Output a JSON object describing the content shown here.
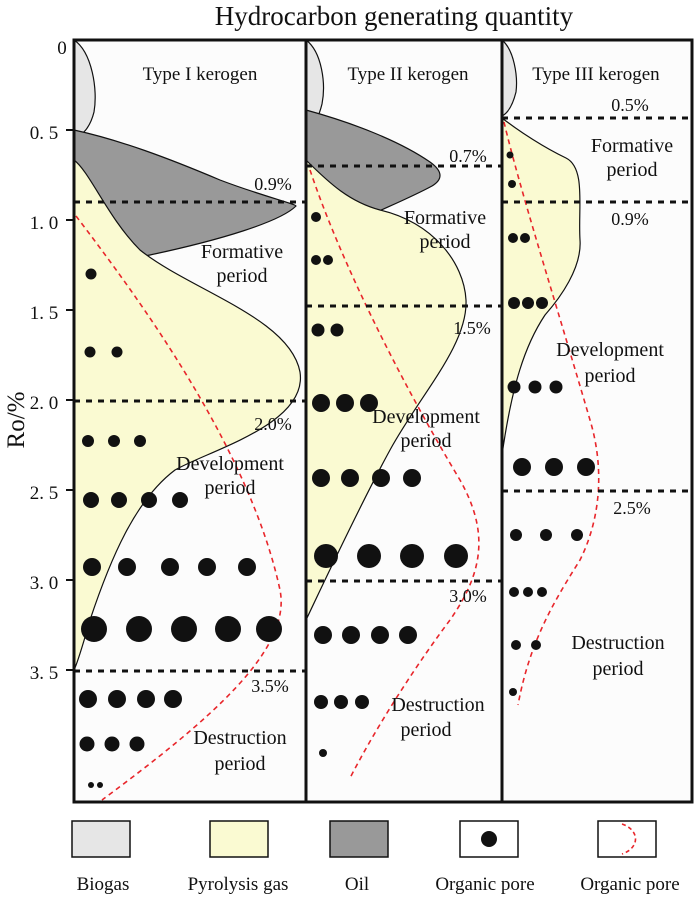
{
  "title": "Hydrocarbon generating quantity",
  "y_axis": {
    "label": "Ro/%",
    "ticks": [
      {
        "value": 0,
        "label": "0"
      },
      {
        "value": 0.5,
        "label": "0. 5"
      },
      {
        "value": 1.0,
        "label": "1. 0"
      },
      {
        "value": 1.5,
        "label": "1. 5"
      },
      {
        "value": 2.0,
        "label": "2. 0"
      },
      {
        "value": 2.5,
        "label": "2. 5"
      },
      {
        "value": 3.0,
        "label": "3. 0"
      },
      {
        "value": 3.5,
        "label": "3. 5"
      }
    ]
  },
  "colors": {
    "biogas": "#e6e6e6",
    "pyrolysis_gas": "#fafad2",
    "oil": "#999999",
    "pore": "#111111",
    "pore_curve": "#e8262b"
  },
  "panels": [
    {
      "id": "type1",
      "title": "Type I kerogen",
      "thresholds": [
        {
          "ro": 0.9,
          "label": "0.9%"
        },
        {
          "ro": 2.0,
          "label": "2.0%"
        },
        {
          "ro": 3.5,
          "label": "3.5%"
        }
      ],
      "periods": [
        {
          "lines": [
            "Formative",
            "period"
          ]
        },
        {
          "lines": [
            "Development",
            "period"
          ]
        },
        {
          "lines": [
            "Destruction",
            "period"
          ]
        }
      ]
    },
    {
      "id": "type2",
      "title": "Type II kerogen",
      "thresholds": [
        {
          "ro": 0.7,
          "label": "0.7%"
        },
        {
          "ro": 1.5,
          "label": "1.5%"
        },
        {
          "ro": 3.0,
          "label": "3.0%"
        }
      ],
      "periods": [
        {
          "lines": [
            "Formative",
            "period"
          ]
        },
        {
          "lines": [
            "Development",
            "period"
          ]
        },
        {
          "lines": [
            "Destruction",
            "period"
          ]
        }
      ]
    },
    {
      "id": "type3",
      "title": "Type III kerogen",
      "thresholds": [
        {
          "ro": 0.5,
          "label": "0.5%"
        },
        {
          "ro": 0.9,
          "label": "0.9%"
        },
        {
          "ro": 2.5,
          "label": "2.5%"
        }
      ],
      "periods": [
        {
          "lines": [
            "Formative",
            "period"
          ]
        },
        {
          "lines": [
            "Development",
            "period"
          ]
        },
        {
          "lines": [
            "Destruction",
            "period"
          ]
        }
      ]
    }
  ],
  "legend": [
    {
      "key": "biogas",
      "label": "Biogas",
      "icon": "gray-swatch"
    },
    {
      "key": "pyrolysis_gas",
      "label": "Pyrolysis gas",
      "icon": "yellow-swatch"
    },
    {
      "key": "oil",
      "label": "Oil",
      "icon": "dark-gray-swatch"
    },
    {
      "key": "organic_pore_dot",
      "label": "Organic pore",
      "icon": "dot-in-box"
    },
    {
      "key": "organic_pore_curve",
      "label": "Organic pore",
      "icon": "red-dashed-curve-in-box"
    }
  ]
}
